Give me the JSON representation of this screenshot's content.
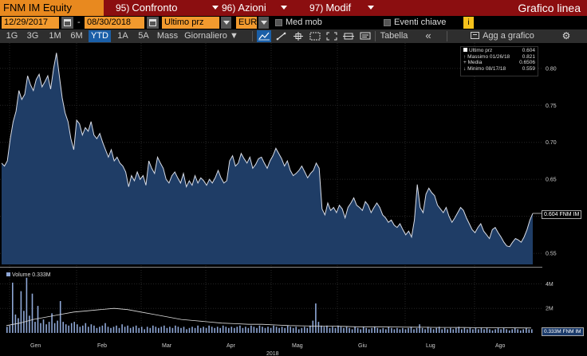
{
  "header": {
    "ticker": "FNM IM Equity",
    "menus": [
      {
        "num": "95)",
        "label": "Confronto"
      },
      {
        "num": "96)",
        "label": "Azioni"
      },
      {
        "num": "97)",
        "label": "Modif"
      }
    ],
    "chart_title": "Grafico linea"
  },
  "options": {
    "start_date": "12/29/2017",
    "dash": "-",
    "end_date": "08/30/2018",
    "field": "Ultimo prz",
    "currency": "EUR",
    "med_mob_label": "Med mob",
    "eventi_label": "Eventi chiave",
    "info_btn": "i"
  },
  "toolbar": {
    "timeframes": [
      "1G",
      "3G",
      "1M",
      "6M",
      "YTD",
      "1A",
      "5A",
      "Mass"
    ],
    "active_timeframe": "YTD",
    "period": "Giornaliero",
    "tabella": "Tabella",
    "collapse": "«",
    "add_chart": "Agg a grafico",
    "settings_icon": "gear-icon"
  },
  "legend": {
    "rows": [
      {
        "label": "Ultimo prz",
        "value": "0.604"
      },
      {
        "label": "Massimo 01/26/18",
        "value": "0.821"
      },
      {
        "label": "Media",
        "value": "0.6506"
      },
      {
        "label": "Minimo 08/17/18",
        "value": "0.559"
      }
    ]
  },
  "last_tag": "0.604 FNM IM",
  "vol_tag": "0.333M FNM IM",
  "vol_legend": "Volume 0.333M",
  "colors": {
    "header_bg": "#8b0e10",
    "ticker_bg": "#e8891f",
    "field_bg": "#f29a2e",
    "area_fill": "#1f3d66",
    "line": "#d8dce6",
    "volume_bar": "#8ea7d6"
  },
  "chart_data": {
    "type": "area",
    "x_labels": [
      "Gen",
      "Feb",
      "Mar",
      "Apr",
      "Mag",
      "Giu",
      "Lug",
      "Ago"
    ],
    "year_label": "2018",
    "price_axis": {
      "ticks": [
        "0.80",
        "0.75",
        "0.70",
        "0.65",
        "0.60",
        "0.55"
      ],
      "ylim": [
        0.535,
        0.83
      ]
    },
    "volume_axis": {
      "ticks": [
        "4M",
        "2M"
      ],
      "ylim": [
        0,
        5
      ]
    },
    "price": [
      0.672,
      0.668,
      0.675,
      0.705,
      0.728,
      0.742,
      0.77,
      0.758,
      0.765,
      0.79,
      0.778,
      0.77,
      0.785,
      0.792,
      0.775,
      0.782,
      0.79,
      0.772,
      0.8,
      0.821,
      0.79,
      0.76,
      0.74,
      0.728,
      0.705,
      0.69,
      0.73,
      0.725,
      0.71,
      0.72,
      0.715,
      0.728,
      0.71,
      0.705,
      0.712,
      0.7,
      0.69,
      0.68,
      0.69,
      0.675,
      0.68,
      0.672,
      0.668,
      0.66,
      0.64,
      0.655,
      0.648,
      0.66,
      0.65,
      0.655,
      0.642,
      0.675,
      0.665,
      0.658,
      0.68,
      0.672,
      0.665,
      0.65,
      0.645,
      0.655,
      0.66,
      0.652,
      0.645,
      0.658,
      0.64,
      0.648,
      0.642,
      0.655,
      0.645,
      0.652,
      0.648,
      0.642,
      0.65,
      0.645,
      0.652,
      0.662,
      0.652,
      0.645,
      0.648,
      0.675,
      0.682,
      0.668,
      0.672,
      0.685,
      0.678,
      0.672,
      0.68,
      0.665,
      0.67,
      0.678,
      0.68,
      0.672,
      0.665,
      0.675,
      0.682,
      0.692,
      0.685,
      0.678,
      0.668,
      0.675,
      0.662,
      0.655,
      0.658,
      0.662,
      0.668,
      0.66,
      0.652,
      0.658,
      0.662,
      0.672,
      0.665,
      0.61,
      0.602,
      0.618,
      0.608,
      0.612,
      0.605,
      0.615,
      0.61,
      0.598,
      0.612,
      0.618,
      0.625,
      0.615,
      0.612,
      0.608,
      0.62,
      0.615,
      0.605,
      0.612,
      0.618,
      0.612,
      0.602,
      0.598,
      0.592,
      0.595,
      0.588,
      0.585,
      0.59,
      0.582,
      0.575,
      0.58,
      0.572,
      0.595,
      0.643,
      0.612,
      0.605,
      0.63,
      0.638,
      0.632,
      0.628,
      0.615,
      0.61,
      0.605,
      0.612,
      0.6,
      0.592,
      0.598,
      0.605,
      0.612,
      0.608,
      0.598,
      0.59,
      0.582,
      0.578,
      0.585,
      0.59,
      0.58,
      0.575,
      0.57,
      0.582,
      0.585,
      0.578,
      0.572,
      0.565,
      0.56,
      0.559,
      0.565,
      0.57,
      0.568,
      0.565,
      0.572,
      0.582,
      0.595,
      0.604
    ],
    "volume": [
      0.5,
      0.6,
      4.1,
      1.5,
      1.2,
      3.4,
      1.8,
      4.5,
      1.4,
      3.2,
      0.9,
      2.2,
      0.8,
      1.1,
      0.7,
      0.9,
      1.6,
      0.8,
      1.0,
      2.6,
      0.9,
      0.7,
      0.6,
      0.8,
      0.9,
      0.7,
      0.5,
      0.6,
      0.8,
      0.5,
      0.7,
      0.6,
      0.4,
      0.5,
      0.6,
      0.8,
      0.5,
      0.4,
      0.5,
      0.6,
      0.4,
      0.7,
      0.5,
      0.6,
      0.4,
      0.5,
      0.6,
      0.4,
      0.5,
      0.3,
      0.5,
      0.4,
      0.6,
      0.5,
      0.4,
      0.5,
      0.6,
      0.4,
      0.5,
      0.4,
      0.6,
      0.5,
      0.4,
      0.5,
      0.3,
      0.4,
      0.5,
      0.4,
      0.6,
      0.4,
      0.5,
      0.4,
      0.6,
      0.5,
      0.4,
      0.5,
      0.4,
      0.6,
      0.5,
      0.4,
      0.5,
      0.4,
      0.5,
      0.6,
      0.4,
      0.5,
      0.4,
      0.6,
      0.5,
      0.4,
      0.6,
      0.5,
      0.4,
      0.5,
      0.4,
      0.6,
      0.5,
      0.4,
      0.5,
      0.4,
      0.6,
      0.5,
      0.4,
      0.5,
      0.3,
      0.4,
      0.5,
      0.4,
      0.6,
      1.0,
      2.4,
      0.9,
      0.6,
      0.5,
      0.6,
      0.4,
      0.5,
      0.4,
      0.6,
      0.5,
      0.4,
      0.5,
      0.4,
      0.3,
      0.5,
      0.4,
      0.3,
      0.5,
      0.4,
      0.3,
      0.4,
      0.5,
      0.4,
      0.3,
      0.4,
      0.3,
      0.5,
      0.4,
      0.3,
      0.4,
      0.3,
      0.4,
      0.3,
      0.4,
      0.5,
      0.3,
      0.4,
      0.7,
      0.4,
      0.3,
      0.5,
      0.4,
      0.3,
      0.4,
      0.5,
      0.3,
      0.4,
      0.3,
      0.4,
      0.3,
      0.4,
      0.5,
      0.3,
      0.4,
      0.3,
      0.4,
      0.3,
      0.4,
      0.3,
      0.4,
      0.3,
      0.4,
      0.3,
      0.2,
      0.3,
      0.4,
      0.3,
      0.4,
      0.3,
      0.2,
      0.3,
      0.4,
      0.3,
      0.2,
      0.3,
      0.4,
      0.3,
      0.3
    ],
    "volume_ma_shape": [
      0.6,
      0.8,
      1.1,
      1.3,
      1.5,
      1.7,
      1.8,
      1.9,
      2.0,
      1.9,
      1.7,
      1.5,
      1.3,
      1.1,
      1.0,
      0.9,
      0.8,
      0.75,
      0.7,
      0.7,
      0.65,
      0.6,
      0.58,
      0.55,
      0.55,
      0.53,
      0.5,
      0.5,
      0.5,
      0.48,
      0.47,
      0.46,
      0.45,
      0.45,
      0.44,
      0.43,
      0.42,
      0.42,
      0.41,
      0.4
    ]
  }
}
